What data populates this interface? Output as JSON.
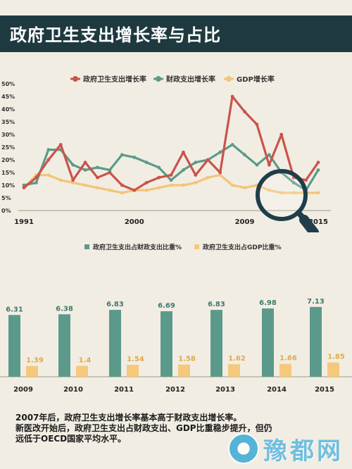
{
  "title": "政府卫生支出增长率与占比",
  "colors": {
    "gov_health": "#c9544b",
    "fiscal": "#5b9a8b",
    "gdp": "#f2c578",
    "bar_ratio_fiscal": "#5b9a8b",
    "bar_ratio_gdp": "#f5c97c",
    "title_bg": "#1e3a40"
  },
  "chart_data": [
    {
      "type": "line",
      "legend_position": "top",
      "y_ticks": [
        "50%",
        "45%",
        "40%",
        "35%",
        "30%",
        "25%",
        "20%",
        "15%",
        "10%",
        "5%",
        "0%"
      ],
      "ylim": [
        0,
        50
      ],
      "xlim": [
        1991,
        2015
      ],
      "x_tick_labels": [
        "1991",
        "2000",
        "2009",
        "2015"
      ],
      "x_tick_values": [
        1991,
        2000,
        2009,
        2015
      ],
      "x": [
        1991,
        1992,
        1993,
        1994,
        1995,
        1996,
        1997,
        1998,
        1999,
        2000,
        2001,
        2002,
        2003,
        2004,
        2005,
        2006,
        2007,
        2008,
        2009,
        2010,
        2011,
        2012,
        2013,
        2014,
        2015
      ],
      "series": [
        {
          "name": "政府卫生支出增长率",
          "color": "#c9544b",
          "values": [
            9,
            13,
            20,
            26,
            12,
            19,
            13,
            15,
            10,
            8,
            11,
            13,
            14,
            23,
            14,
            20,
            15,
            45,
            39,
            34,
            18,
            30,
            13,
            12,
            19
          ]
        },
        {
          "name": "财政支出增长率",
          "color": "#5b9a8b",
          "values": [
            10,
            11,
            24,
            24,
            18,
            16,
            17,
            16,
            22,
            21,
            19,
            17,
            12,
            16,
            19,
            20,
            23,
            26,
            22,
            18,
            22,
            15,
            11,
            8,
            16
          ]
        },
        {
          "name": "GDP增长率",
          "color": "#f2c578",
          "values": [
            9,
            14,
            14,
            12,
            11,
            10,
            9,
            8,
            7,
            8,
            8,
            9,
            10,
            10,
            11,
            13,
            14,
            10,
            9,
            10,
            8,
            7,
            7,
            7,
            7
          ]
        }
      ]
    },
    {
      "type": "bar",
      "legend_position": "top",
      "categories": [
        "2009",
        "2010",
        "2011",
        "2012",
        "2013",
        "2014",
        "2015"
      ],
      "series": [
        {
          "name": "政府卫生支出占财政支出比重%",
          "color": "#5b9a8b",
          "values": [
            6.31,
            6.38,
            6.83,
            6.69,
            6.83,
            6.98,
            7.13
          ],
          "labels": [
            "6.31",
            "6.38",
            "6.83",
            "6.69",
            "6.83",
            "6.98",
            "7.13"
          ]
        },
        {
          "name": "政府卫生支出占GDP比重%",
          "color": "#f5c97c",
          "values": [
            1.39,
            1.4,
            1.54,
            1.58,
            1.62,
            1.66,
            1.85
          ],
          "labels": [
            "1.39",
            "1.4",
            "1.54",
            "1.58",
            "1.62",
            "1.66",
            "1.85"
          ]
        }
      ]
    }
  ],
  "footer": {
    "line1": "2007年后，政府卫生支出增长率基本高于财政支出增长率。",
    "line2": "新医改开始后，政府卫生支出占财政支出、GDP比重稳步提升，但仍",
    "line3": "远低于OECD国家平均水平。"
  },
  "watermark": "豫都网"
}
